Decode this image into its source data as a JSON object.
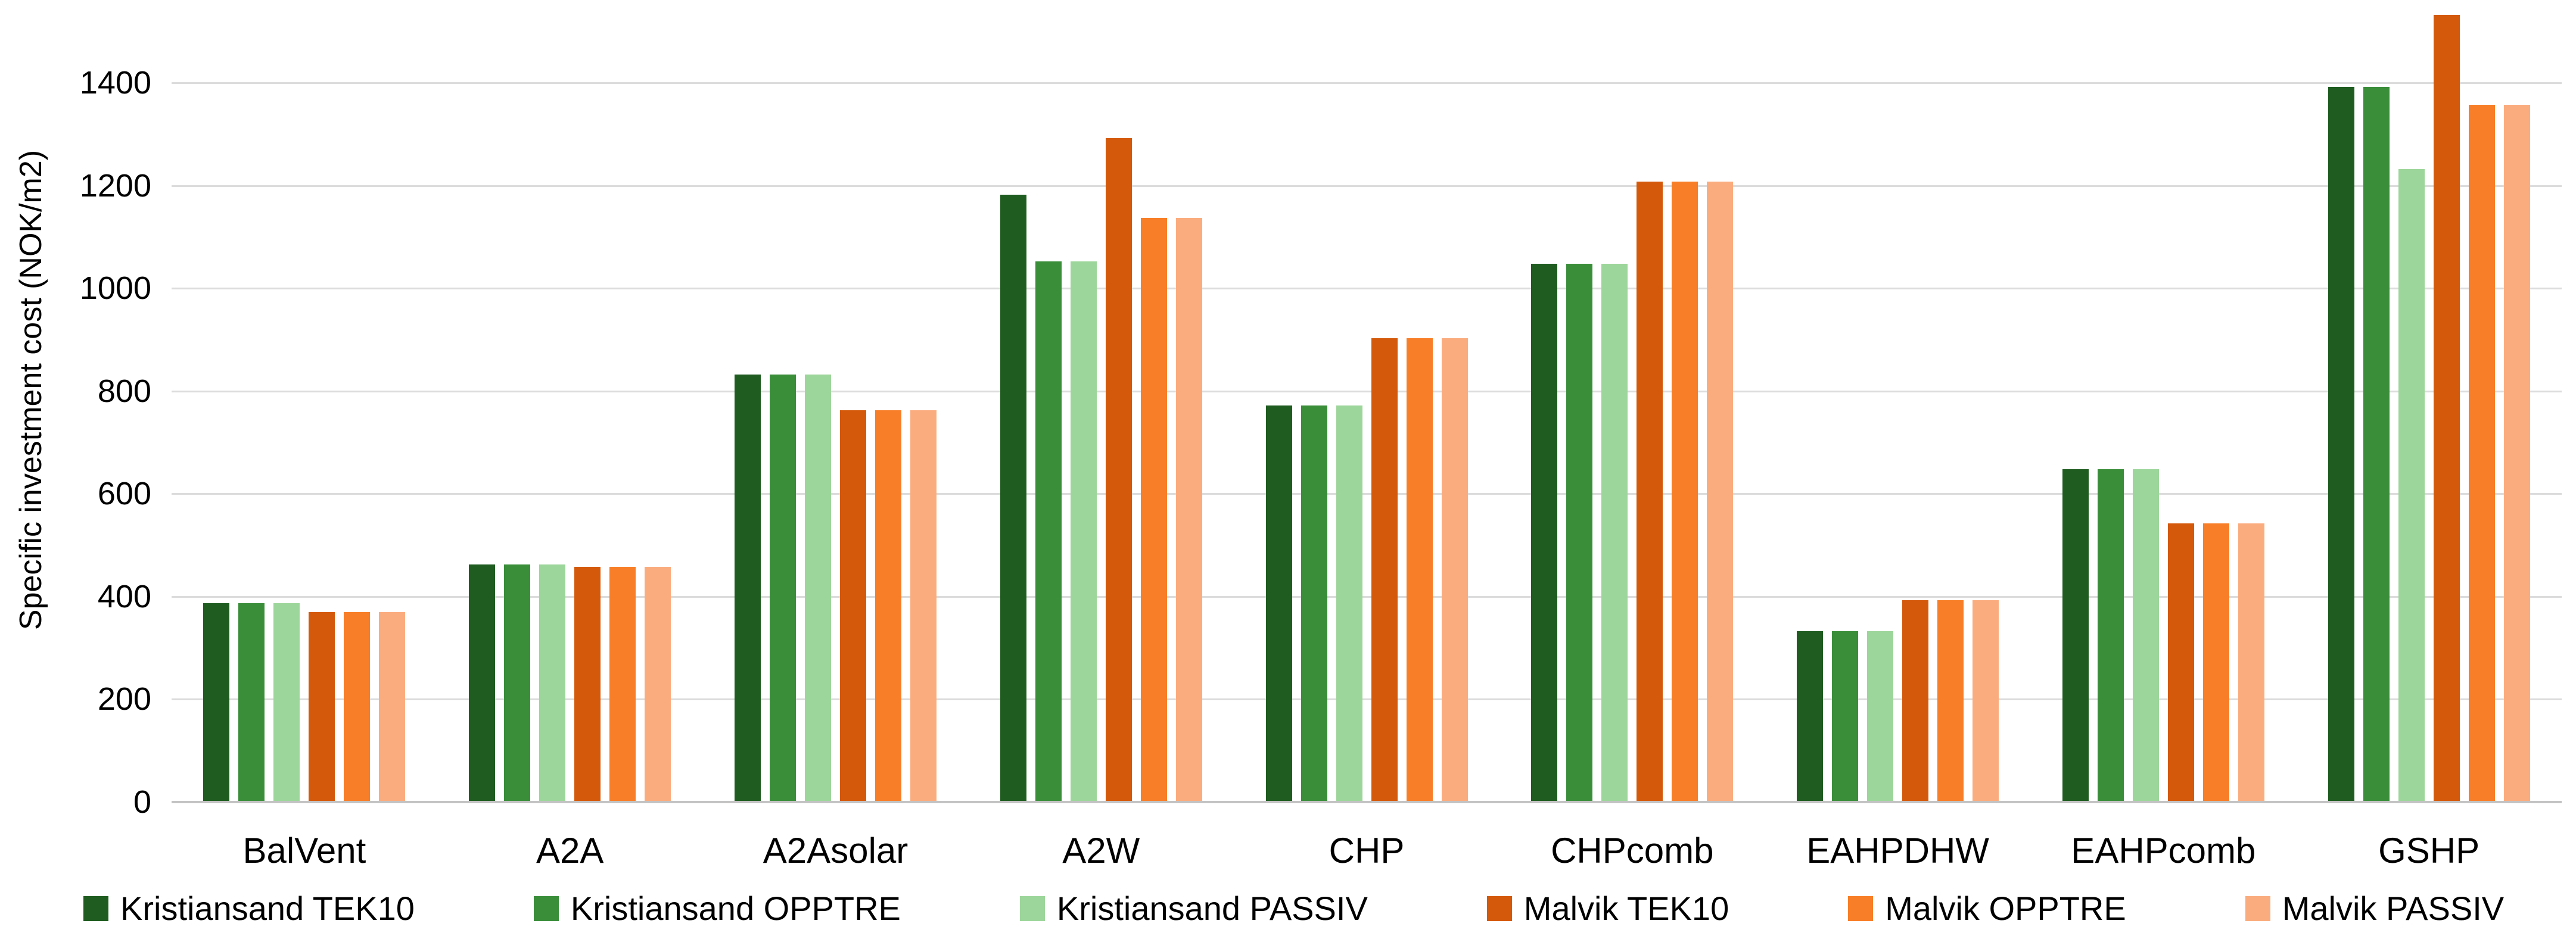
{
  "axis": {
    "y_title": "Specific investment cost (NOK/m2)"
  },
  "chart_data": {
    "type": "bar",
    "title": "",
    "xlabel": "",
    "ylabel": "Specific investment cost (NOK/m2)",
    "ylim": [
      0,
      1560
    ],
    "yticks": [
      0,
      200,
      400,
      600,
      800,
      1000,
      1200,
      1400
    ],
    "grid": true,
    "legend_position": "bottom",
    "categories": [
      "BalVent",
      "A2A",
      "A2Asolar",
      "A2W",
      "CHP",
      "CHPcomb",
      "EAHPDHW",
      "EAHPcomb",
      "GSHP"
    ],
    "series": [
      {
        "name": "Kristiansand TEK10",
        "color": "#1E5C20",
        "values": [
          385,
          460,
          830,
          1180,
          770,
          1045,
          330,
          645,
          1390
        ]
      },
      {
        "name": "Kristiansand OPPTRE",
        "color": "#3A8E3A",
        "values": [
          385,
          460,
          830,
          1050,
          770,
          1045,
          330,
          645,
          1390
        ]
      },
      {
        "name": "Kristiansand PASSIV",
        "color": "#9DD69A",
        "values": [
          385,
          460,
          830,
          1050,
          770,
          1045,
          330,
          645,
          1230
        ]
      },
      {
        "name": "Malvik TEK10",
        "color": "#D4590B",
        "values": [
          367,
          455,
          760,
          1290,
          900,
          1205,
          390,
          540,
          1530
        ]
      },
      {
        "name": "Malvik OPPTRE",
        "color": "#F87E27",
        "values": [
          367,
          455,
          760,
          1135,
          900,
          1205,
          390,
          540,
          1355
        ]
      },
      {
        "name": "Malvik PASSIV",
        "color": "#FBAC7E",
        "values": [
          367,
          455,
          760,
          1135,
          900,
          1205,
          390,
          540,
          1355
        ]
      }
    ]
  }
}
